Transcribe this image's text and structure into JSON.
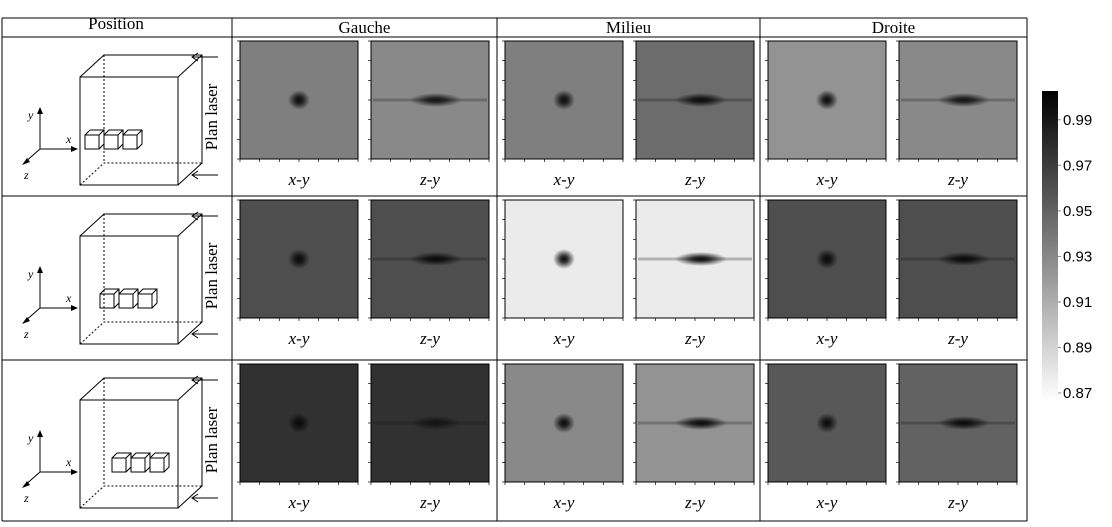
{
  "header_position": "Position",
  "columns": [
    "Gauche",
    "Milieu",
    "Droite"
  ],
  "rows": [
    {
      "laser_label": "Plan laser",
      "axes": [
        "x",
        "y",
        "z"
      ],
      "panels": [
        {
          "label": "x-y",
          "background": 0.935,
          "peak": 0.995
        },
        {
          "label": "z-y",
          "background": 0.93,
          "peak": 0.99
        },
        {
          "label": "x-y",
          "background": 0.935,
          "peak": 0.995
        },
        {
          "label": "z-y",
          "background": 0.945,
          "peak": 0.995
        },
        {
          "label": "x-y",
          "background": 0.925,
          "peak": 0.995
        },
        {
          "label": "z-y",
          "background": 0.93,
          "peak": 0.99
        }
      ]
    },
    {
      "laser_label": "Plan laser",
      "axes": [
        "x",
        "y",
        "z"
      ],
      "panels": [
        {
          "label": "x-y",
          "background": 0.96,
          "peak": 0.995
        },
        {
          "label": "z-y",
          "background": 0.96,
          "peak": 0.995
        },
        {
          "label": "x-y",
          "background": 0.88,
          "peak": 0.995
        },
        {
          "label": "z-y",
          "background": 0.88,
          "peak": 0.995
        },
        {
          "label": "x-y",
          "background": 0.96,
          "peak": 0.995
        },
        {
          "label": "z-y",
          "background": 0.96,
          "peak": 0.995
        }
      ]
    },
    {
      "laser_label": "Plan laser",
      "axes": [
        "x",
        "y",
        "z"
      ],
      "panels": [
        {
          "label": "x-y",
          "background": 0.975,
          "peak": 0.995
        },
        {
          "label": "z-y",
          "background": 0.975,
          "peak": 0.99
        },
        {
          "label": "x-y",
          "background": 0.93,
          "peak": 0.995
        },
        {
          "label": "z-y",
          "background": 0.925,
          "peak": 0.995
        },
        {
          "label": "x-y",
          "background": 0.955,
          "peak": 0.995
        },
        {
          "label": "z-y",
          "background": 0.95,
          "peak": 0.995
        }
      ]
    }
  ],
  "colorbar": {
    "lim": [
      0.87,
      1.0
    ],
    "ticks": [
      0.99,
      0.97,
      0.95,
      0.93,
      0.91,
      0.89,
      0.87
    ]
  }
}
